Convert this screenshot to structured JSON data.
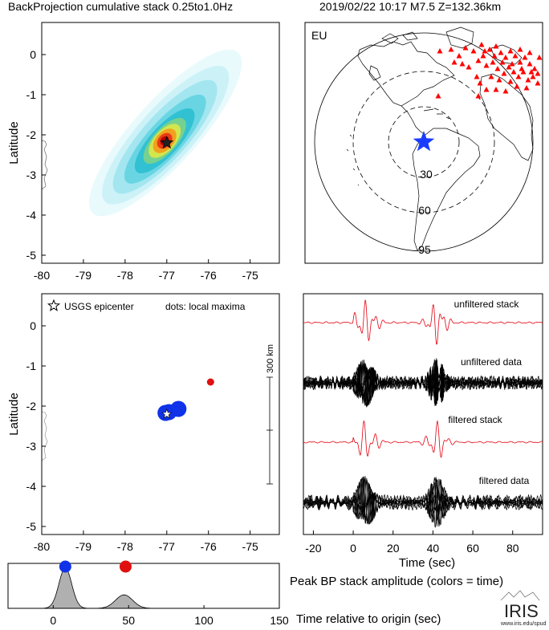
{
  "header": {
    "title": "BackProjection cumulative stack 0.25to1.0Hz",
    "event": "2019/02/22 10:17  M7.5  Z=132.36km"
  },
  "colors": {
    "stack_red": "#e4000f",
    "data_black": "#000000",
    "maxima_blue": "#1032e8",
    "maxima_red": "#e01010",
    "station_red": "#ff0000",
    "epicenter_blue": "#1a3cff",
    "amplitude_fill": "#b0b0b0"
  },
  "chart_data": [
    {
      "type": "heatmap",
      "panel": "cumulative-stack",
      "ylabel": "Latitude",
      "xlim": [
        -80,
        -74.3
      ],
      "ylim": [
        -5.2,
        0.8
      ],
      "x_ticks": [
        "-80",
        "-79",
        "-78",
        "-77",
        "-76",
        "-75"
      ],
      "y_ticks": [
        "0",
        "-1",
        "-2",
        "-3",
        "-4",
        "-5"
      ],
      "epicenter": {
        "lon": -77.0,
        "lat": -2.2
      },
      "peak": {
        "lon": -77.05,
        "lat": -2.15
      }
    },
    {
      "type": "map",
      "panel": "station-map",
      "label": "EU",
      "ring_labels": [
        "30",
        "60",
        "95"
      ]
    },
    {
      "type": "scatter",
      "panel": "local-maxima",
      "ylabel": "Latitude",
      "xlim": [
        -80,
        -74.3
      ],
      "ylim": [
        -5.2,
        0.8
      ],
      "x_ticks": [
        "-80",
        "-79",
        "-78",
        "-77",
        "-76",
        "-75"
      ],
      "y_ticks": [
        "0",
        "-1",
        "-2",
        "-3",
        "-4",
        "-5"
      ],
      "legend_epicenter": "USGS epicenter",
      "legend_dots": "dots: local maxima",
      "scale_label": "300 km",
      "epicenter": {
        "lon": -77.0,
        "lat": -2.2
      },
      "points": [
        {
          "lon": -77.03,
          "lat": -2.17,
          "time": 8,
          "color": "blue"
        },
        {
          "lon": -76.95,
          "lat": -2.15,
          "time": 9,
          "color": "blue"
        },
        {
          "lon": -76.72,
          "lat": -2.07,
          "time": 10,
          "color": "blue"
        },
        {
          "lon": -75.95,
          "lat": -1.4,
          "time": 48,
          "color": "red"
        }
      ]
    },
    {
      "type": "line",
      "panel": "seismograms",
      "xlabel": "Time (sec)",
      "xlim": [
        -25,
        95
      ],
      "x_ticks": [
        "-20",
        "0",
        "20",
        "40",
        "60",
        "80"
      ],
      "traces": [
        "unfiltered stack",
        "unfiltered data",
        "filtered stack",
        "filtered data"
      ]
    },
    {
      "type": "area",
      "panel": "peak-amplitude",
      "title": "Peak BP stack amplitude (colors = time)",
      "xlabel": "Time relative to origin (sec)",
      "xlim": [
        -30,
        150
      ],
      "x_ticks": [
        "0",
        "50",
        "100",
        "150"
      ],
      "peaks": [
        {
          "time": 8,
          "color": "blue"
        },
        {
          "time": 48,
          "color": "red"
        }
      ]
    }
  ],
  "logo": {
    "name": "IRIS",
    "url": "www.iris.edu/spud"
  }
}
